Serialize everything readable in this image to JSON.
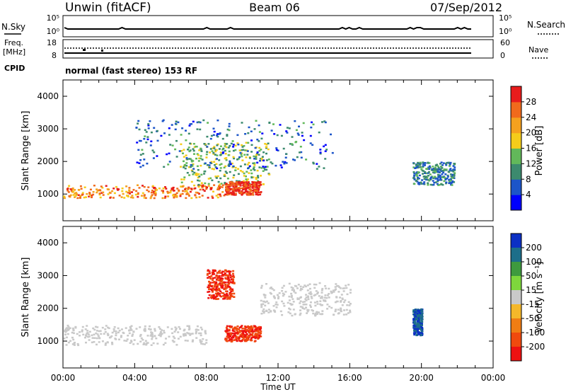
{
  "header": {
    "station": "Unwin (fitACF)",
    "beam": "Beam 06",
    "date": "07/Sep/2012"
  },
  "noise_panel": {
    "left_label": "N.Sky",
    "right_label": "N.Search",
    "left_ticks": [
      "10^5",
      "10^0"
    ],
    "right_ticks": [
      "10^5",
      "10^0"
    ]
  },
  "freq_panel": {
    "left_label_1": "Freq.",
    "left_label_2": "[MHz]",
    "left_ticks": [
      "18",
      "8"
    ],
    "right_label": "Nave",
    "right_ticks": [
      "60",
      "0"
    ],
    "cpid_label": "CPID",
    "cpid_text": "normal (fast stereo) 153 RF"
  },
  "chart_data": [
    {
      "type": "heatmap",
      "name": "power",
      "ylabel": "Slant Range [km]",
      "ylim": [
        180,
        4500
      ],
      "yticks": [
        1000,
        2000,
        3000,
        4000
      ],
      "colorbar": {
        "label": "Power [dB]",
        "range": [
          0,
          32
        ],
        "ticks": [
          4,
          8,
          12,
          16,
          20,
          24,
          28
        ],
        "colors": [
          "#0000ff",
          "#1c55c9",
          "#3c8a6e",
          "#62b85a",
          "#f5cc1a",
          "#f5a11e",
          "#f16a1c",
          "#e81c1c"
        ]
      },
      "echo_regions": [
        {
          "t": [
            0.0,
            9.0
          ],
          "range_km": [
            900,
            1300
          ],
          "level": "high",
          "values_db": [
            18,
            30
          ]
        },
        {
          "t": [
            6.5,
            11.5
          ],
          "range_km": [
            1300,
            2600
          ],
          "level": "medium",
          "values_db": [
            8,
            20
          ]
        },
        {
          "t": [
            9.0,
            11.0
          ],
          "range_km": [
            1000,
            1400
          ],
          "level": "high",
          "values_db": [
            24,
            32
          ]
        },
        {
          "t": [
            4.0,
            15.0
          ],
          "range_km": [
            1800,
            3300
          ],
          "level": "low",
          "values_db": [
            2,
            14
          ]
        },
        {
          "t": [
            19.5,
            21.8
          ],
          "range_km": [
            1300,
            2000
          ],
          "level": "low",
          "values_db": [
            4,
            14
          ]
        }
      ]
    },
    {
      "type": "heatmap",
      "name": "velocity",
      "ylabel": "Slant Range [km]",
      "xlabel": "Time UT",
      "xlim": [
        0,
        24
      ],
      "xticks": [
        "00:00",
        "04:00",
        "08:00",
        "12:00",
        "16:00",
        "20:00",
        "00:00"
      ],
      "ylim": [
        180,
        4500
      ],
      "yticks": [
        1000,
        2000,
        3000,
        4000
      ],
      "colorbar": {
        "label": "Velocity [m s^-1]",
        "ticks": [
          "200",
          "100",
          "50",
          "15",
          "-15",
          "-50",
          "-100",
          "-200"
        ],
        "colors": [
          "#0c30c4",
          "#1d6e8a",
          "#3e9a3e",
          "#7ed63c",
          "#c9c9c9",
          "#f5b82a",
          "#f07d14",
          "#f04a0e",
          "#ee1111"
        ]
      },
      "echo_regions": [
        {
          "t": [
            0.0,
            8.0
          ],
          "range_km": [
            900,
            1500
          ],
          "level": "ground",
          "values_ms": [
            -15,
            15
          ]
        },
        {
          "t": [
            9.0,
            11.0
          ],
          "range_km": [
            1000,
            1500
          ],
          "level": "strong-away",
          "values_ms": [
            -200,
            -100
          ]
        },
        {
          "t": [
            8.0,
            9.5
          ],
          "range_km": [
            2300,
            3200
          ],
          "level": "strong-away",
          "values_ms": [
            -200,
            -100
          ]
        },
        {
          "t": [
            11.0,
            16.0
          ],
          "range_km": [
            1800,
            2800
          ],
          "level": "ground",
          "values_ms": [
            -15,
            15
          ]
        },
        {
          "t": [
            19.5,
            20.0
          ],
          "range_km": [
            1200,
            2000
          ],
          "level": "toward",
          "values_ms": [
            100,
            200
          ]
        }
      ]
    }
  ]
}
